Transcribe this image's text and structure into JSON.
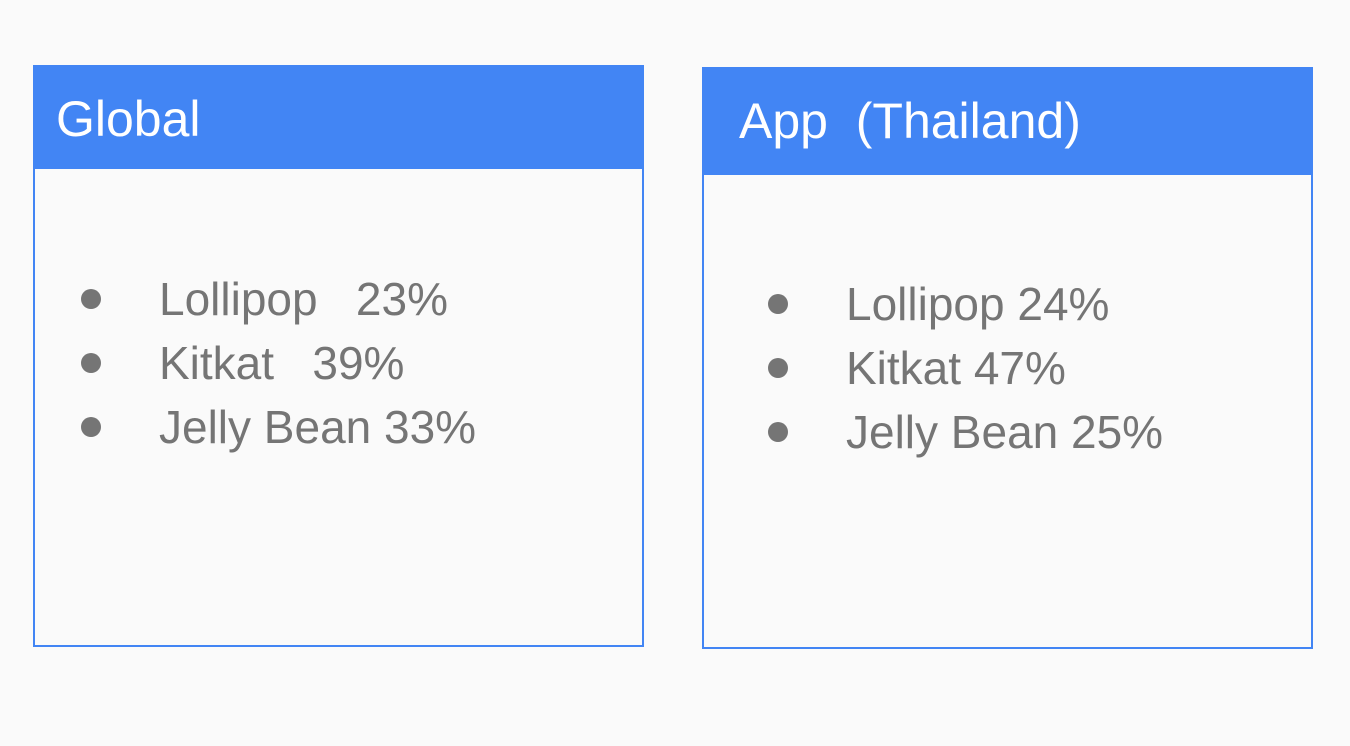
{
  "colors": {
    "accent": "#4285f4",
    "text": "#757575",
    "background": "#fafafa",
    "header_text": "#ffffff"
  },
  "global_card": {
    "title": "Global",
    "items": [
      {
        "label": "Lollipop   23%"
      },
      {
        "label": "Kitkat   39%"
      },
      {
        "label": "Jelly Bean 33%"
      }
    ]
  },
  "app_card": {
    "title": "App  (Thailand)",
    "items": [
      {
        "label": "Lollipop 24%"
      },
      {
        "label": "Kitkat 47%"
      },
      {
        "label": "Jelly Bean 25%"
      }
    ]
  }
}
